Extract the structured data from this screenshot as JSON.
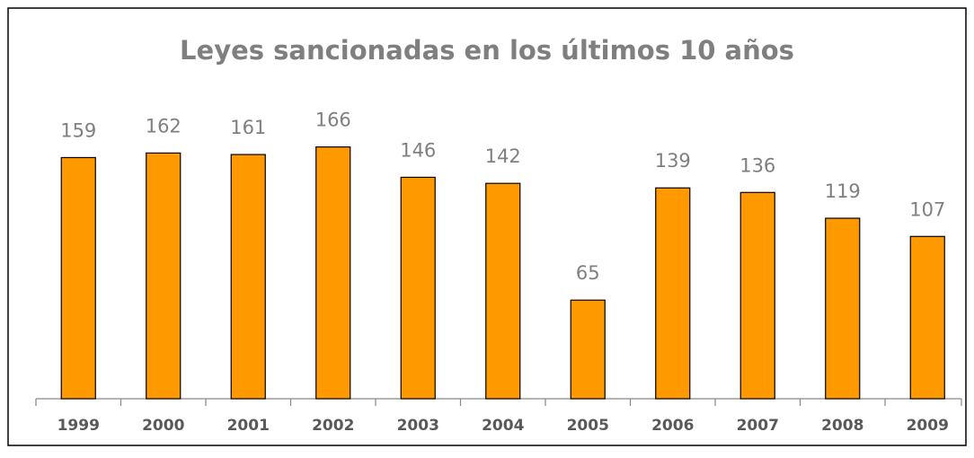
{
  "chart_data": {
    "type": "bar",
    "title": "Leyes sancionadas en los últimos 10 años",
    "categories": [
      "1999",
      "2000",
      "2001",
      "2002",
      "2003",
      "2004",
      "2005",
      "2006",
      "2007",
      "2008",
      "2009"
    ],
    "values": [
      159,
      162,
      161,
      166,
      146,
      142,
      65,
      139,
      136,
      119,
      107
    ],
    "color": "#ff9900",
    "ylim": [
      0,
      180
    ]
  }
}
